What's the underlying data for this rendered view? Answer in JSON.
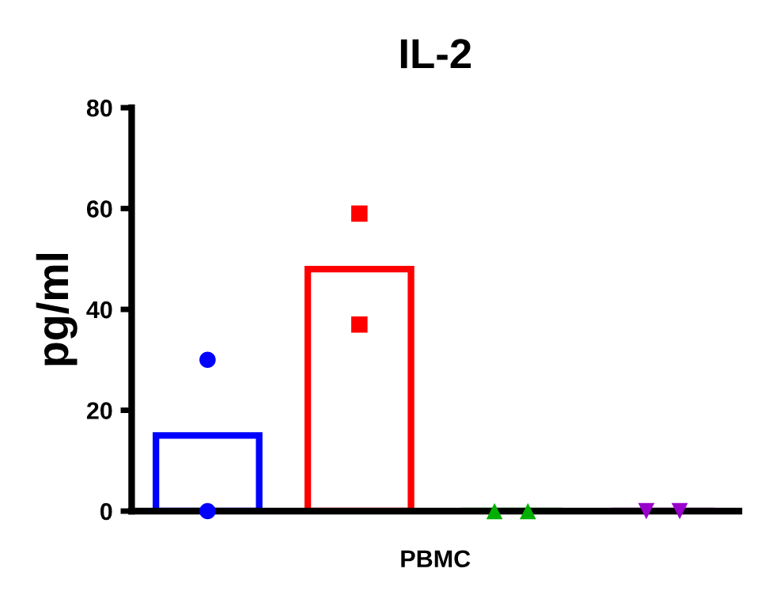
{
  "chart_data": {
    "type": "bar",
    "title": "IL-2",
    "ylabel": "pg/ml",
    "xlabel": "PBMC",
    "categories": [
      null,
      null,
      null,
      null
    ],
    "values": [
      15,
      48,
      0,
      0
    ],
    "colors": [
      "#0000ff",
      "#ff0000",
      "#00b000",
      "#9900cc"
    ],
    "series": [
      {
        "type": "scatter",
        "color": "#0000ff",
        "marker": "circle",
        "values": [
          30,
          null,
          null,
          null
        ]
      },
      {
        "type": "scatter",
        "color": "#0000ff",
        "marker": "circle",
        "values": [
          0,
          null,
          null,
          null
        ]
      },
      {
        "type": "scatter",
        "color": "#ff0000",
        "marker": "square",
        "values": [
          null,
          59,
          null,
          null
        ]
      },
      {
        "type": "scatter",
        "color": "#ff0000",
        "marker": "square",
        "values": [
          null,
          37,
          null,
          null
        ]
      },
      {
        "type": "scatter",
        "color": "#00b000",
        "marker": "triangle",
        "values": [
          null,
          null,
          0,
          null
        ]
      },
      {
        "type": "scatter",
        "color": "#00b000",
        "marker": "triangle",
        "values": [
          null,
          null,
          0,
          null
        ]
      },
      {
        "type": "scatter",
        "color": "#9900cc",
        "marker": "triangle_down",
        "values": [
          null,
          null,
          null,
          0
        ]
      },
      {
        "type": "scatter",
        "color": "#9900cc",
        "marker": "triangle_down",
        "values": [
          null,
          null,
          null,
          0
        ]
      }
    ],
    "ylim": [
      0,
      80
    ],
    "yticks": [
      0,
      20,
      40,
      60,
      80
    ],
    "grid": false,
    "legend": false
  }
}
